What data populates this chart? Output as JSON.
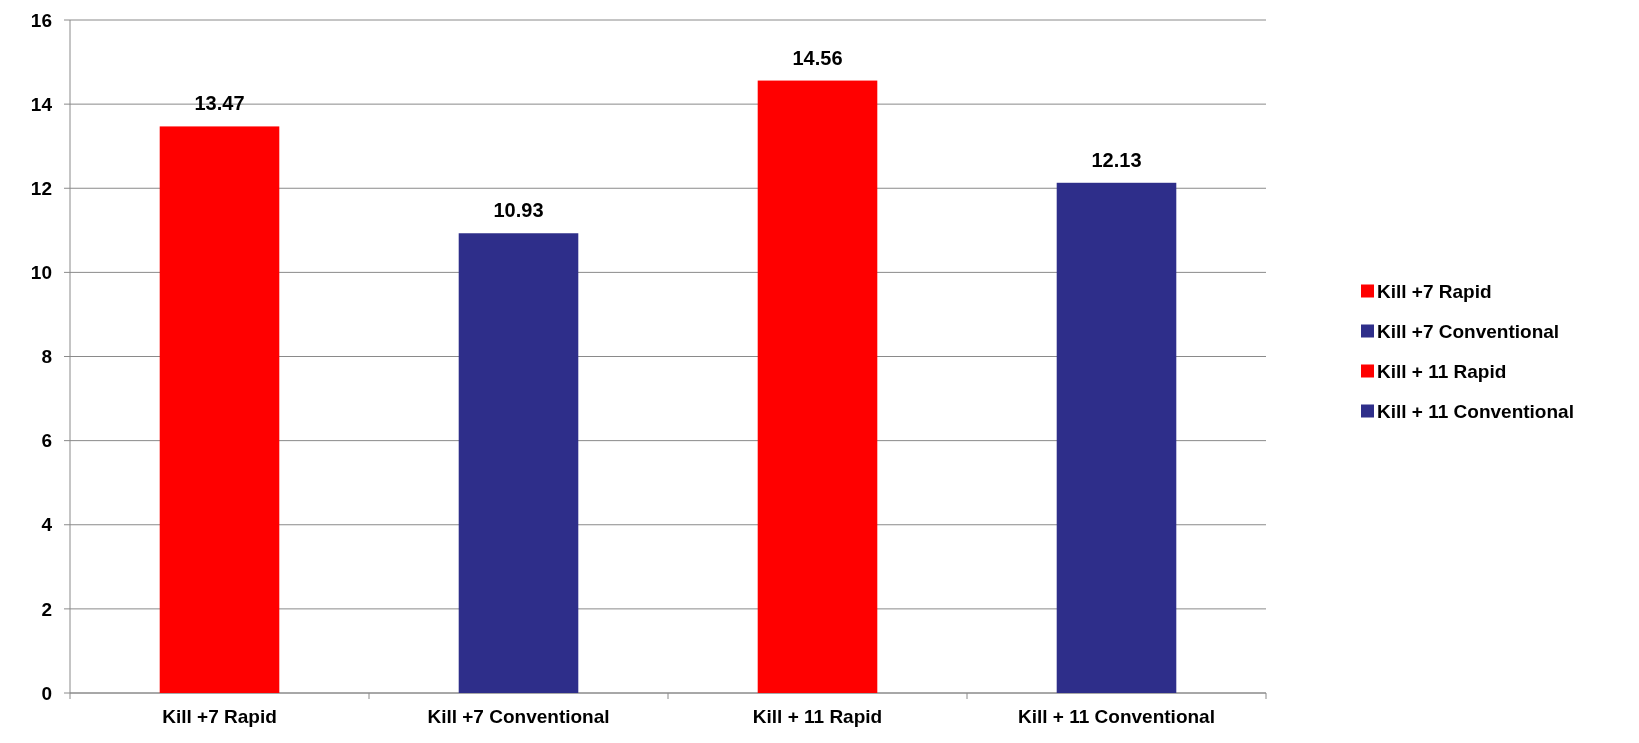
{
  "chart_data": {
    "type": "bar",
    "categories": [
      "Kill +7 Rapid",
      "Kill +7 Conventional",
      "Kill + 11 Rapid",
      "Kill + 11 Conventional"
    ],
    "series": [
      {
        "name": "Kill +7 Rapid",
        "color": "#ff0000",
        "values": [
          13.47,
          null,
          null,
          null
        ]
      },
      {
        "name": "Kill +7 Conventional",
        "color": "#2e2e8a",
        "values": [
          null,
          10.93,
          null,
          null
        ]
      },
      {
        "name": "Kill + 11 Rapid",
        "color": "#ff0000",
        "values": [
          null,
          null,
          14.56,
          null
        ]
      },
      {
        "name": "Kill + 11 Conventional",
        "color": "#2e2e8a",
        "values": [
          null,
          null,
          null,
          12.13
        ]
      }
    ],
    "ylim": [
      0,
      16
    ],
    "yticks": [
      0,
      2,
      4,
      6,
      8,
      10,
      12,
      14,
      16
    ],
    "grid": "y",
    "legend": "right",
    "data_labels": true
  }
}
